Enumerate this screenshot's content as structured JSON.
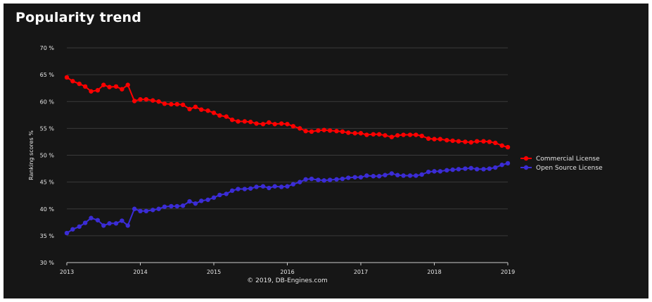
{
  "chart_data": {
    "type": "line",
    "title": "Popularity trend",
    "ylabel": "Ranking scores %",
    "credit": "© 2019, DB-Engines.com",
    "ylim": [
      30,
      70
    ],
    "y_ticks": [
      {
        "value": 30,
        "label": "30 %"
      },
      {
        "value": 35,
        "label": "35 %"
      },
      {
        "value": 40,
        "label": "40 %"
      },
      {
        "value": 45,
        "label": "45 %"
      },
      {
        "value": 50,
        "label": "50 %"
      },
      {
        "value": 55,
        "label": "55 %"
      },
      {
        "value": 60,
        "label": "60 %"
      },
      {
        "value": 65,
        "label": "65 %"
      },
      {
        "value": 70,
        "label": "70 %"
      }
    ],
    "x_ticks": [
      {
        "value": 2013,
        "label": "2013"
      },
      {
        "value": 2014,
        "label": "2014"
      },
      {
        "value": 2015,
        "label": "2015"
      },
      {
        "value": 2016,
        "label": "2016"
      },
      {
        "value": 2017,
        "label": "2017"
      },
      {
        "value": 2018,
        "label": "2018"
      },
      {
        "value": 2019,
        "label": "2019"
      }
    ],
    "xlim": [
      2013,
      2019
    ],
    "grid": true,
    "legend_position": "right",
    "series": [
      {
        "name": "Commercial License",
        "color": "#ff0000",
        "points": [
          [
            2013.0,
            64.5
          ],
          [
            2013.08,
            63.8
          ],
          [
            2013.17,
            63.3
          ],
          [
            2013.25,
            62.8
          ],
          [
            2013.33,
            61.9
          ],
          [
            2013.42,
            62.1
          ],
          [
            2013.5,
            63.1
          ],
          [
            2013.58,
            62.7
          ],
          [
            2013.67,
            62.8
          ],
          [
            2013.75,
            62.3
          ],
          [
            2013.83,
            63.1
          ],
          [
            2013.92,
            60.1
          ],
          [
            2014.0,
            60.4
          ],
          [
            2014.08,
            60.4
          ],
          [
            2014.17,
            60.2
          ],
          [
            2014.25,
            60.0
          ],
          [
            2014.33,
            59.6
          ],
          [
            2014.42,
            59.5
          ],
          [
            2014.5,
            59.5
          ],
          [
            2014.58,
            59.4
          ],
          [
            2014.67,
            58.6
          ],
          [
            2014.75,
            59.0
          ],
          [
            2014.83,
            58.5
          ],
          [
            2014.92,
            58.3
          ],
          [
            2015.0,
            57.9
          ],
          [
            2015.08,
            57.4
          ],
          [
            2015.17,
            57.2
          ],
          [
            2015.25,
            56.6
          ],
          [
            2015.33,
            56.3
          ],
          [
            2015.42,
            56.3
          ],
          [
            2015.5,
            56.2
          ],
          [
            2015.58,
            55.9
          ],
          [
            2015.67,
            55.8
          ],
          [
            2015.75,
            56.1
          ],
          [
            2015.83,
            55.8
          ],
          [
            2015.92,
            55.9
          ],
          [
            2016.0,
            55.8
          ],
          [
            2016.08,
            55.4
          ],
          [
            2016.17,
            55.0
          ],
          [
            2016.25,
            54.5
          ],
          [
            2016.33,
            54.4
          ],
          [
            2016.42,
            54.6
          ],
          [
            2016.5,
            54.7
          ],
          [
            2016.58,
            54.6
          ],
          [
            2016.67,
            54.5
          ],
          [
            2016.75,
            54.4
          ],
          [
            2016.83,
            54.2
          ],
          [
            2016.92,
            54.1
          ],
          [
            2017.0,
            54.1
          ],
          [
            2017.08,
            53.8
          ],
          [
            2017.17,
            53.9
          ],
          [
            2017.25,
            53.9
          ],
          [
            2017.33,
            53.7
          ],
          [
            2017.42,
            53.4
          ],
          [
            2017.5,
            53.7
          ],
          [
            2017.58,
            53.8
          ],
          [
            2017.67,
            53.8
          ],
          [
            2017.75,
            53.8
          ],
          [
            2017.83,
            53.6
          ],
          [
            2017.92,
            53.1
          ],
          [
            2018.0,
            53.0
          ],
          [
            2018.08,
            53.0
          ],
          [
            2018.17,
            52.8
          ],
          [
            2018.25,
            52.7
          ],
          [
            2018.33,
            52.6
          ],
          [
            2018.42,
            52.5
          ],
          [
            2018.5,
            52.4
          ],
          [
            2018.58,
            52.6
          ],
          [
            2018.67,
            52.6
          ],
          [
            2018.75,
            52.5
          ],
          [
            2018.83,
            52.3
          ],
          [
            2018.92,
            51.8
          ],
          [
            2019.0,
            51.5
          ]
        ]
      },
      {
        "name": "Open Source License",
        "color": "#3b2cd6",
        "points": [
          [
            2013.0,
            35.5
          ],
          [
            2013.08,
            36.2
          ],
          [
            2013.17,
            36.7
          ],
          [
            2013.25,
            37.4
          ],
          [
            2013.33,
            38.3
          ],
          [
            2013.42,
            37.9
          ],
          [
            2013.5,
            36.9
          ],
          [
            2013.58,
            37.3
          ],
          [
            2013.67,
            37.3
          ],
          [
            2013.75,
            37.8
          ],
          [
            2013.83,
            36.9
          ],
          [
            2013.92,
            40.0
          ],
          [
            2014.0,
            39.6
          ],
          [
            2014.08,
            39.6
          ],
          [
            2014.17,
            39.8
          ],
          [
            2014.25,
            40.0
          ],
          [
            2014.33,
            40.4
          ],
          [
            2014.42,
            40.5
          ],
          [
            2014.5,
            40.5
          ],
          [
            2014.58,
            40.6
          ],
          [
            2014.67,
            41.4
          ],
          [
            2014.75,
            41.0
          ],
          [
            2014.83,
            41.5
          ],
          [
            2014.92,
            41.7
          ],
          [
            2015.0,
            42.1
          ],
          [
            2015.08,
            42.6
          ],
          [
            2015.17,
            42.8
          ],
          [
            2015.25,
            43.4
          ],
          [
            2015.33,
            43.7
          ],
          [
            2015.42,
            43.7
          ],
          [
            2015.5,
            43.8
          ],
          [
            2015.58,
            44.1
          ],
          [
            2015.67,
            44.2
          ],
          [
            2015.75,
            43.9
          ],
          [
            2015.83,
            44.2
          ],
          [
            2015.92,
            44.1
          ],
          [
            2016.0,
            44.2
          ],
          [
            2016.08,
            44.6
          ],
          [
            2016.17,
            45.0
          ],
          [
            2016.25,
            45.5
          ],
          [
            2016.33,
            45.6
          ],
          [
            2016.42,
            45.4
          ],
          [
            2016.5,
            45.3
          ],
          [
            2016.58,
            45.4
          ],
          [
            2016.67,
            45.5
          ],
          [
            2016.75,
            45.6
          ],
          [
            2016.83,
            45.8
          ],
          [
            2016.92,
            45.9
          ],
          [
            2017.0,
            45.9
          ],
          [
            2017.08,
            46.2
          ],
          [
            2017.17,
            46.1
          ],
          [
            2017.25,
            46.1
          ],
          [
            2017.33,
            46.3
          ],
          [
            2017.42,
            46.6
          ],
          [
            2017.5,
            46.3
          ],
          [
            2017.58,
            46.2
          ],
          [
            2017.67,
            46.2
          ],
          [
            2017.75,
            46.2
          ],
          [
            2017.83,
            46.4
          ],
          [
            2017.92,
            46.9
          ],
          [
            2018.0,
            47.0
          ],
          [
            2018.08,
            47.0
          ],
          [
            2018.17,
            47.2
          ],
          [
            2018.25,
            47.3
          ],
          [
            2018.33,
            47.4
          ],
          [
            2018.42,
            47.5
          ],
          [
            2018.5,
            47.6
          ],
          [
            2018.58,
            47.4
          ],
          [
            2018.67,
            47.4
          ],
          [
            2018.75,
            47.5
          ],
          [
            2018.83,
            47.7
          ],
          [
            2018.92,
            48.2
          ],
          [
            2019.0,
            48.5
          ]
        ]
      }
    ]
  }
}
